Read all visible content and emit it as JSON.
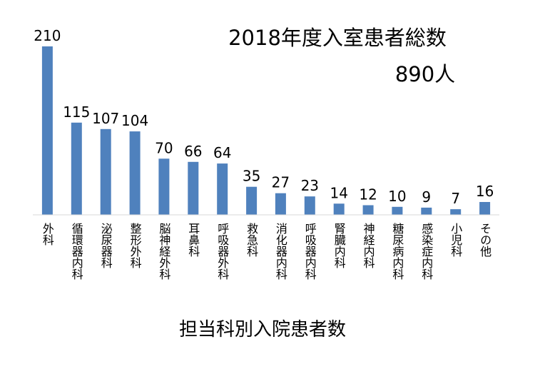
{
  "chart_data": {
    "type": "bar",
    "title": "2018年度入室患者総数",
    "subtitle": "890人",
    "xlabel": "担当科別入院患者数",
    "ylabel": "",
    "ylim": [
      0,
      210
    ],
    "grid": false,
    "legend": "none",
    "bar_color": "#4f81bd",
    "axis_color": "#d9d9d9",
    "categories": [
      "外科",
      "循環器内科",
      "泌尿器科",
      "整形外科",
      "脳神経外科",
      "耳鼻科",
      "呼吸器外科",
      "救急科",
      "消化器内科",
      "呼吸器内科",
      "腎臓内科",
      "神経内科",
      "糖尿病内科",
      "感染症内科",
      "小児科",
      "その他"
    ],
    "values": [
      210,
      115,
      107,
      104,
      70,
      66,
      64,
      35,
      27,
      23,
      14,
      12,
      10,
      9,
      7,
      16
    ],
    "data_labels": [
      "210",
      "115",
      "107",
      "104",
      "70",
      "66",
      "64",
      "35",
      "27",
      "23",
      "14",
      "12",
      "10",
      "9",
      "7",
      "16"
    ]
  }
}
